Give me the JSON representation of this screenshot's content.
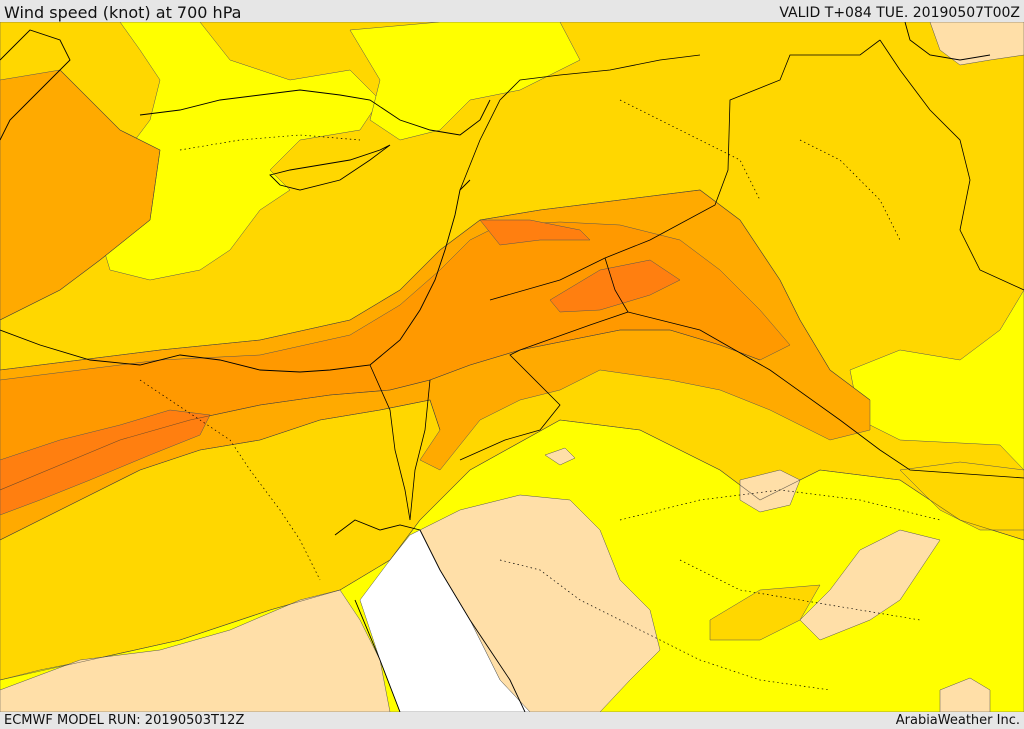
{
  "header": {
    "title": "Wind speed (knot) at 700 hPa",
    "valid": "VALID T+084 TUE. 20190507T00Z"
  },
  "footer": {
    "model_run": "ECMWF MODEL RUN: 20190503T12Z",
    "credit": "ArabiaWeather Inc."
  },
  "map": {
    "field": "wind speed at 700 hPa",
    "colors": {
      "calm": "#ffdfa8",
      "light": "#ffff00",
      "moderate": "#ffd700",
      "strong": "#ffaa00",
      "stronger": "#ff9900",
      "strongest": "#ff7f10",
      "max": "#f0601a",
      "masked": "#ffffff"
    },
    "layers": [
      "filled-contours",
      "contour-lines",
      "coastlines",
      "country-borders",
      "region-borders"
    ]
  }
}
